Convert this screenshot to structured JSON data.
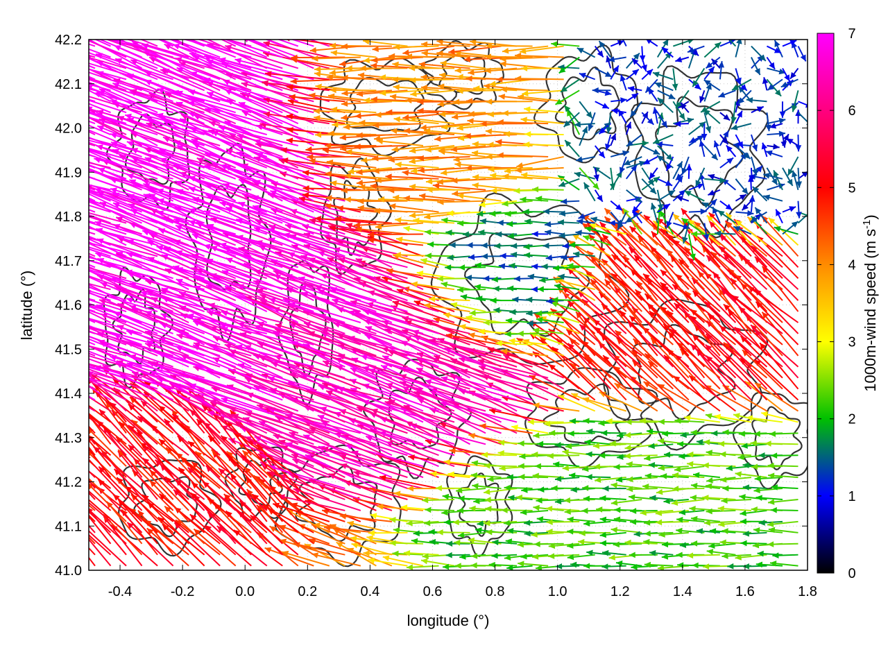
{
  "chart_data": {
    "type": "vector-field",
    "xlabel": "longitude (°)",
    "ylabel": "latitude (°)",
    "xlim": [
      -0.5,
      1.8
    ],
    "ylim": [
      41.0,
      42.2
    ],
    "xticks": [
      "-0.4",
      "-0.2",
      "0.0",
      "0.2",
      "0.4",
      "0.6",
      "0.8",
      "1.0",
      "1.2",
      "1.4",
      "1.6",
      "1.8"
    ],
    "yticks": [
      "41.0",
      "41.1",
      "41.2",
      "41.3",
      "41.4",
      "41.5",
      "41.6",
      "41.7",
      "41.8",
      "41.9",
      "42.0",
      "42.1",
      "42.2"
    ],
    "grid": true,
    "colorbar": {
      "label_prefix": "1000m-wind speed (m s",
      "label_sup": "-1",
      "label_suffix": ")",
      "range": [
        0,
        7
      ],
      "ticks": [
        "0",
        "1",
        "2",
        "3",
        "4",
        "5",
        "6",
        "7"
      ],
      "colormap": [
        "#000000",
        "#0000ff",
        "#00c000",
        "#ffff00",
        "#ff8c00",
        "#ff0000",
        "#ff00ff"
      ]
    },
    "contour_color": "#333333",
    "wind_regions": [
      {
        "area": "north-west",
        "lon": [
          -0.5,
          0.3
        ],
        "lat": [
          41.5,
          42.2
        ],
        "speed_ms": 7,
        "direction": "from ESE"
      },
      {
        "area": "central diagonal band",
        "lon": [
          0.2,
          0.9
        ],
        "lat": [
          41.3,
          41.7
        ],
        "speed_ms": 6.5,
        "direction": "from ESE"
      },
      {
        "area": "north-central",
        "lon": [
          0.3,
          0.9
        ],
        "lat": [
          41.8,
          42.2
        ],
        "speed_ms": 4,
        "direction": "from E"
      },
      {
        "area": "north-east calm",
        "lon": [
          1.2,
          1.8
        ],
        "lat": [
          41.8,
          42.2
        ],
        "speed_ms": 1.2,
        "direction": "variable"
      },
      {
        "area": "central calm",
        "lon": [
          0.6,
          1.1
        ],
        "lat": [
          41.5,
          41.8
        ],
        "speed_ms": 1.5,
        "direction": "from E"
      },
      {
        "area": "east-central",
        "lon": [
          1.1,
          1.8
        ],
        "lat": [
          41.4,
          41.7
        ],
        "speed_ms": 5,
        "direction": "from SE"
      },
      {
        "area": "south-east",
        "lon": [
          0.9,
          1.8
        ],
        "lat": [
          41.0,
          41.3
        ],
        "speed_ms": 2.2,
        "direction": "from E"
      },
      {
        "area": "south-west",
        "lon": [
          -0.5,
          0.0
        ],
        "lat": [
          41.0,
          41.3
        ],
        "speed_ms": 5,
        "direction": "from SE"
      }
    ]
  }
}
